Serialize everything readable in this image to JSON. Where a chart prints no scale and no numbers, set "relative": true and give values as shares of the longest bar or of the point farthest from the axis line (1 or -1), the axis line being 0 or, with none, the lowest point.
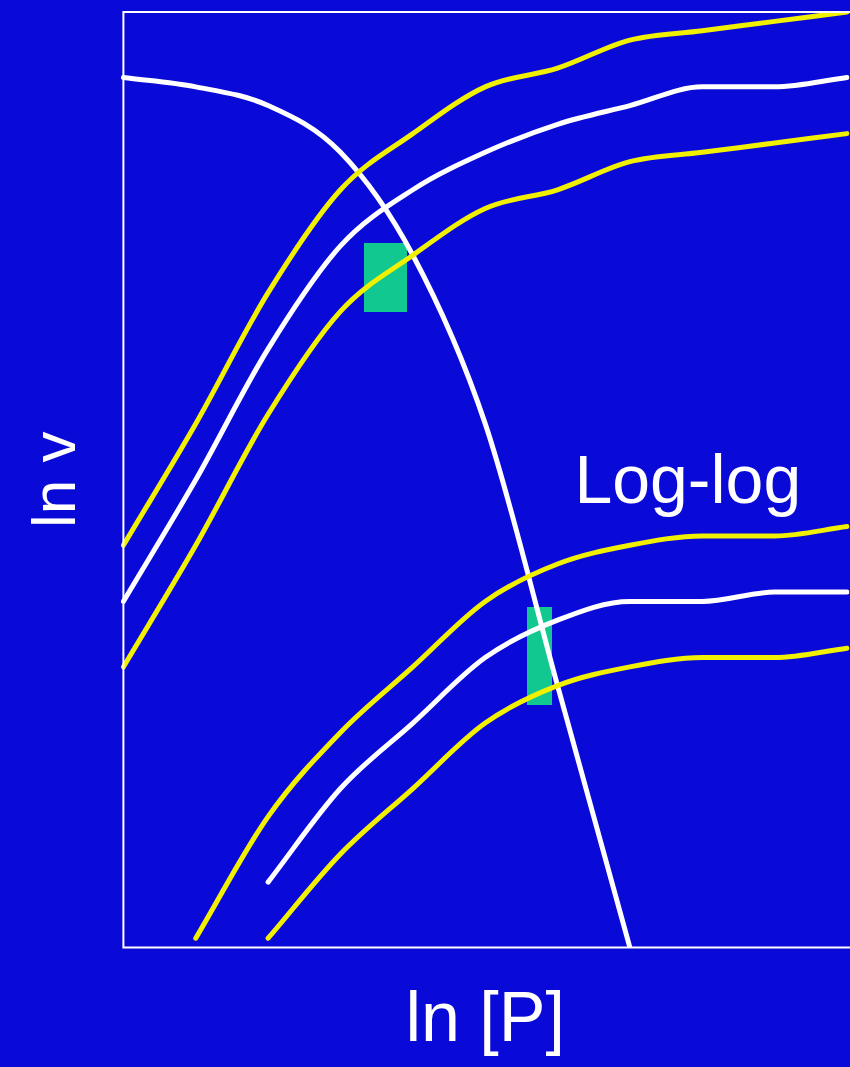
{
  "chart_data": {
    "type": "line",
    "relative": true,
    "xlabel": "ln [P]",
    "ylabel": "ln v",
    "annotations": [
      "Log-log"
    ],
    "legend": false,
    "grid": false,
    "marker": "none",
    "line_style": "solid",
    "categories": [
      null,
      null,
      null,
      null,
      null,
      null,
      null,
      null,
      null,
      null,
      null
    ],
    "series": [
      {
        "color": "#f0f000",
        "values": [
          0.43,
          0.56,
          0.7,
          0.81,
          0.87,
          0.92,
          0.94,
          0.97,
          0.98,
          0.99,
          1
        ]
      },
      {
        "color": "#ffffff",
        "values": [
          0.37,
          0.5,
          0.64,
          0.75,
          0.81,
          0.85,
          0.88,
          0.9,
          0.92,
          0.92,
          0.93
        ]
      },
      {
        "color": "#f0f000",
        "values": [
          0.3,
          0.43,
          0.57,
          0.68,
          0.74,
          0.79,
          0.81,
          0.84,
          0.85,
          0.86,
          0.87
        ]
      },
      {
        "color": "#f0f000",
        "values": [
          null,
          0.01,
          0.14,
          0.23,
          0.3,
          0.37,
          0.41,
          0.43,
          0.44,
          0.44,
          0.45
        ]
      },
      {
        "color": "#ffffff",
        "values": [
          null,
          null,
          0.07,
          0.17,
          0.24,
          0.31,
          0.35,
          0.37,
          0.37,
          0.38,
          0.38
        ]
      },
      {
        "color": "#f0f000",
        "values": [
          null,
          null,
          0.01,
          0.1,
          0.17,
          0.24,
          0.28,
          0.3,
          0.31,
          0.31,
          0.32
        ]
      },
      {
        "color": "#ffffff",
        "values": [
          0.93,
          0.92,
          0.9,
          0.85,
          0.74,
          0.56,
          0.28,
          0,
          null,
          null,
          null
        ]
      }
    ]
  }
}
